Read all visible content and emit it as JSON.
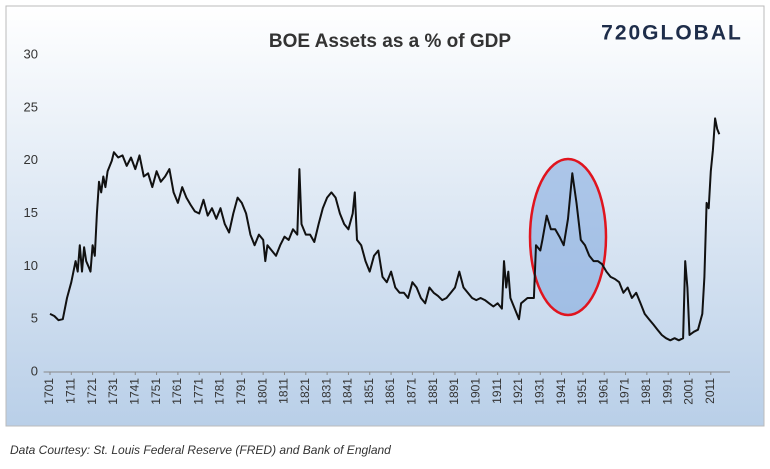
{
  "chart_data": {
    "type": "line",
    "title": "BOE Assets as a % of GDP",
    "logo": "720GLOBAL",
    "source": "Data Courtesy: St. Louis Federal Reserve (FRED) and Bank of England",
    "xlim": [
      1698,
      2020
    ],
    "ylim": [
      0,
      30
    ],
    "xticks": [
      1701,
      1711,
      1721,
      1731,
      1741,
      1751,
      1761,
      1771,
      1781,
      1791,
      1801,
      1811,
      1821,
      1831,
      1841,
      1851,
      1861,
      1871,
      1881,
      1891,
      1901,
      1911,
      1921,
      1931,
      1941,
      1951,
      1961,
      1971,
      1981,
      1991,
      2001,
      2011
    ],
    "yticks": [
      0,
      5,
      10,
      15,
      20,
      25,
      30
    ],
    "grid": false,
    "series": [
      {
        "name": "BOE Assets as a % of GDP",
        "color": "#111111",
        "x": [
          1701,
          1703,
          1705,
          1707,
          1709,
          1711,
          1713,
          1714,
          1715,
          1716,
          1717,
          1718,
          1719,
          1720,
          1721,
          1722,
          1723,
          1724,
          1725,
          1726,
          1727,
          1728,
          1730,
          1731,
          1733,
          1735,
          1737,
          1739,
          1741,
          1743,
          1745,
          1747,
          1749,
          1751,
          1753,
          1755,
          1757,
          1759,
          1761,
          1763,
          1765,
          1767,
          1769,
          1771,
          1773,
          1775,
          1777,
          1779,
          1781,
          1783,
          1785,
          1787,
          1789,
          1791,
          1793,
          1795,
          1797,
          1799,
          1801,
          1802,
          1803,
          1805,
          1807,
          1809,
          1811,
          1813,
          1815,
          1817,
          1818,
          1819,
          1821,
          1823,
          1825,
          1827,
          1829,
          1831,
          1833,
          1835,
          1837,
          1839,
          1841,
          1843,
          1844,
          1845,
          1847,
          1849,
          1851,
          1853,
          1855,
          1857,
          1859,
          1861,
          1863,
          1865,
          1867,
          1869,
          1871,
          1873,
          1875,
          1877,
          1879,
          1881,
          1883,
          1885,
          1887,
          1889,
          1891,
          1893,
          1895,
          1897,
          1899,
          1901,
          1903,
          1905,
          1907,
          1909,
          1911,
          1913,
          1914,
          1915,
          1916,
          1917,
          1919,
          1921,
          1922,
          1925,
          1928,
          1929,
          1931,
          1932,
          1934,
          1936,
          1938,
          1940,
          1942,
          1944,
          1946,
          1948,
          1950,
          1952,
          1954,
          1956,
          1958,
          1960,
          1962,
          1964,
          1966,
          1968,
          1970,
          1972,
          1974,
          1976,
          1978,
          1980,
          1982,
          1984,
          1986,
          1988,
          1990,
          1992,
          1994,
          1996,
          1998,
          1999,
          2000,
          2001,
          2003,
          2005,
          2007,
          2008,
          2009,
          2010,
          2011,
          2012,
          2013,
          2014,
          2015
        ],
        "values": [
          5.5,
          5.3,
          4.9,
          5.0,
          7.0,
          8.5,
          10.5,
          9.5,
          12,
          9.5,
          11.8,
          10.5,
          10,
          9.5,
          12,
          11,
          15,
          18,
          17,
          18.5,
          17.5,
          19,
          20,
          20.8,
          20.3,
          20.5,
          19.5,
          20.3,
          19.2,
          20.5,
          18.5,
          18.8,
          17.5,
          19,
          18,
          18.5,
          19.2,
          17,
          16,
          17.5,
          16.5,
          15.8,
          15.2,
          15,
          16.3,
          14.8,
          15.5,
          14.5,
          15.5,
          14,
          13.2,
          15,
          16.5,
          16,
          15,
          13,
          12,
          13,
          12.5,
          10.5,
          12,
          11.5,
          11,
          12,
          12.8,
          12.5,
          13.5,
          13,
          19.2,
          14,
          13,
          13,
          12.3,
          14,
          15.5,
          16.5,
          17,
          16.5,
          15,
          14,
          13.5,
          15,
          17,
          12.5,
          12,
          10.5,
          9.5,
          11,
          11.5,
          9,
          8.5,
          9.5,
          8,
          7.5,
          7.5,
          7,
          8.5,
          8,
          7,
          6.5,
          8,
          7.5,
          7.2,
          6.8,
          7,
          7.5,
          8,
          9.5,
          8,
          7.5,
          7,
          6.8,
          7,
          6.8,
          6.5,
          6.2,
          6.5,
          6,
          10.5,
          8,
          9.5,
          7,
          6,
          5,
          6.5,
          7,
          7,
          12,
          11.5,
          12.5,
          14.8,
          13.5,
          13.5,
          12.8,
          12,
          14.5,
          18.8,
          16,
          12.5,
          12,
          11,
          10.5,
          10.5,
          10.2,
          9.5,
          9,
          8.8,
          8.5,
          7.5,
          8,
          7,
          7.5,
          6.5,
          5.5,
          5,
          4.5,
          4,
          3.5,
          3.2,
          3,
          3.2,
          3,
          3.2,
          10.5,
          8,
          3.5,
          3.8,
          4,
          5.5,
          9,
          16,
          15.5,
          19,
          21,
          24,
          23,
          22.5
        ]
      }
    ]
  }
}
